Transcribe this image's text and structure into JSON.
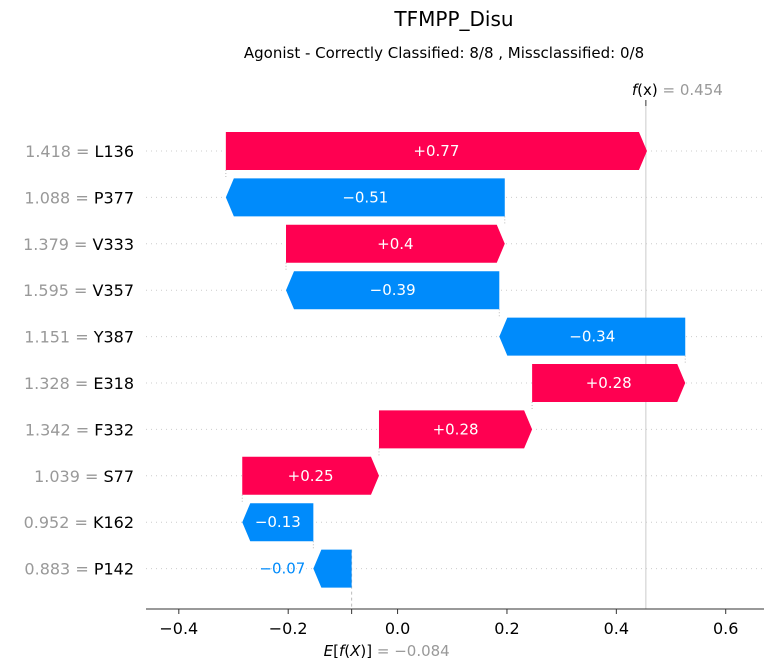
{
  "chart_data": {
    "type": "waterfall",
    "title": "TFMPP_Disu",
    "subtitle": "Agonist - Correctly Classified: 8/8 , Missclassified: 0/8",
    "base_value": -0.084,
    "base_label": "= −0.084",
    "output_value": 0.454,
    "output_label": "= 0.454",
    "xlim": [
      -0.46,
      0.67
    ],
    "xticks": [
      -0.4,
      -0.2,
      0.0,
      0.2,
      0.4,
      0.6
    ],
    "xtick_labels": [
      "−0.4",
      "−0.2",
      "0.0",
      "0.2",
      "0.4",
      "0.6"
    ],
    "features": [
      {
        "value": "1.418",
        "name": "L136",
        "contribution": 0.77,
        "label": "+0.77"
      },
      {
        "value": "1.088",
        "name": "P377",
        "contribution": -0.51,
        "label": "−0.51"
      },
      {
        "value": "1.379",
        "name": "V333",
        "contribution": 0.4,
        "label": "+0.4"
      },
      {
        "value": "1.595",
        "name": "V357",
        "contribution": -0.39,
        "label": "−0.39"
      },
      {
        "value": "1.151",
        "name": "Y387",
        "contribution": -0.34,
        "label": "−0.34"
      },
      {
        "value": "1.328",
        "name": "E318",
        "contribution": 0.28,
        "label": "+0.28"
      },
      {
        "value": "1.342",
        "name": "F332",
        "contribution": 0.28,
        "label": "+0.28"
      },
      {
        "value": "1.039",
        "name": "S77",
        "contribution": 0.25,
        "label": "+0.25"
      },
      {
        "value": "0.952",
        "name": "K162",
        "contribution": -0.13,
        "label": "−0.13"
      },
      {
        "value": "0.883",
        "name": "P142",
        "contribution": -0.07,
        "label": "−0.07"
      }
    ],
    "colors": {
      "positive": "#ff0051",
      "negative": "#008bfb",
      "grey": "#999999"
    }
  }
}
